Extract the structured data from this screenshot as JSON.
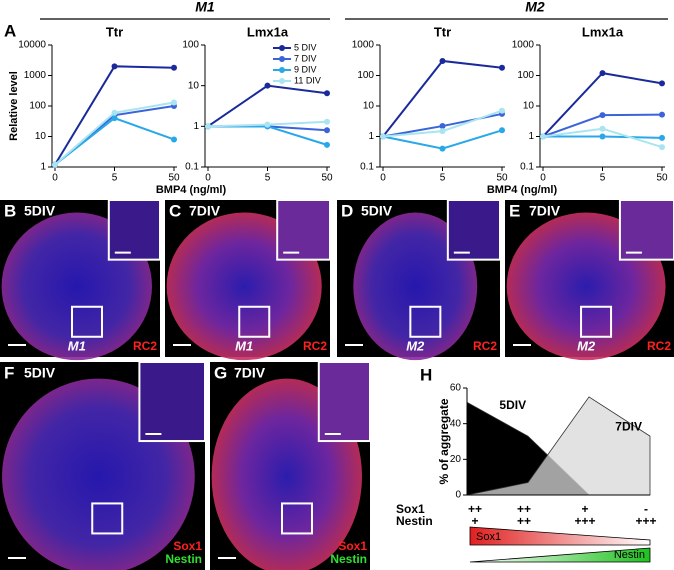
{
  "panels": {
    "panel_a": {
      "label": "A",
      "groups": [
        {
          "title": "M1"
        },
        {
          "title": "M2"
        }
      ]
    },
    "images": [
      {
        "label": "B",
        "div": "5DIV",
        "model": "M1",
        "markers": [
          {
            "text": "RC2",
            "color": "#ff2020"
          }
        ]
      },
      {
        "label": "C",
        "div": "7DIV",
        "model": "M1",
        "markers": [
          {
            "text": "RC2",
            "color": "#ff2020"
          }
        ]
      },
      {
        "label": "D",
        "div": "5DIV",
        "model": "M2",
        "markers": [
          {
            "text": "RC2",
            "color": "#ff2020"
          }
        ]
      },
      {
        "label": "E",
        "div": "7DIV",
        "model": "M2",
        "markers": [
          {
            "text": "RC2",
            "color": "#ff2020"
          }
        ]
      },
      {
        "label": "F",
        "div": "5DIV",
        "markers": [
          {
            "text": "Sox1",
            "color": "#ff2020"
          },
          {
            "text": "Nestin",
            "color": "#30e030"
          }
        ]
      },
      {
        "label": "G",
        "div": "7DIV",
        "markers": [
          {
            "text": "Sox1",
            "color": "#ff2020"
          },
          {
            "text": "Nestin",
            "color": "#30e030"
          }
        ]
      }
    ],
    "panel_h": {
      "label": "H",
      "markers": [
        {
          "name": "Sox1",
          "color": "#e02020",
          "levels": [
            "++",
            "++",
            "+",
            "-"
          ]
        },
        {
          "name": "Nestin",
          "color": "#20c820",
          "levels": [
            "+",
            "++",
            "+++",
            "+++"
          ]
        }
      ]
    }
  },
  "chart_data": [
    {
      "type": "line",
      "title": "Ttr",
      "ylabel": "Relative level",
      "xlabel": "BMP4 (ng/ml)",
      "categories": [
        "0",
        "5",
        "50"
      ],
      "log_y": true,
      "ylim": [
        1,
        10000
      ],
      "yticks": [
        1,
        10,
        100,
        1000,
        10000
      ],
      "series": [
        {
          "color": "#1a2a9a",
          "values": [
            1.2,
            2000,
            1800
          ]
        },
        {
          "color": "#3a64d8",
          "values": [
            1.2,
            50,
            100
          ]
        },
        {
          "color": "#28a8e8",
          "values": [
            1.2,
            40,
            8
          ]
        },
        {
          "color": "#a8e4f2",
          "values": [
            1.2,
            60,
            130
          ]
        }
      ]
    },
    {
      "type": "line",
      "title": "Lmx1a",
      "categories": [
        "0",
        "5",
        "50"
      ],
      "log_y": true,
      "ylim": [
        0.1,
        100
      ],
      "yticks": [
        0.1,
        1,
        10,
        100
      ],
      "series": [
        {
          "name": "5 DIV",
          "color": "#1a2a9a",
          "values": [
            1,
            10,
            6.5
          ]
        },
        {
          "name": "7 DIV",
          "color": "#3a64d8",
          "values": [
            1,
            1,
            0.8
          ]
        },
        {
          "name": "9 DIV",
          "color": "#28a8e8",
          "values": [
            1,
            1,
            0.35
          ]
        },
        {
          "name": "11 DIV",
          "color": "#a8e4f2",
          "values": [
            1,
            1.1,
            1.3
          ]
        }
      ]
    },
    {
      "type": "line",
      "title": "Ttr",
      "xlabel": "BMP4 (ng/ml)",
      "categories": [
        "0",
        "5",
        "50"
      ],
      "log_y": true,
      "ylim": [
        0.1,
        1000
      ],
      "yticks": [
        0.1,
        1,
        10,
        100,
        1000
      ],
      "series": [
        {
          "color": "#1a2a9a",
          "values": [
            1,
            300,
            180
          ]
        },
        {
          "color": "#3a64d8",
          "values": [
            1,
            2.2,
            5.5
          ]
        },
        {
          "color": "#28a8e8",
          "values": [
            1,
            0.4,
            1.6
          ]
        },
        {
          "color": "#a8e4f2",
          "values": [
            1,
            1.5,
            7
          ]
        }
      ]
    },
    {
      "type": "line",
      "title": "Lmx1a",
      "categories": [
        "0",
        "5",
        "50"
      ],
      "log_y": true,
      "ylim": [
        0.1,
        1000
      ],
      "yticks": [
        0.1,
        1,
        10,
        100,
        1000
      ],
      "series": [
        {
          "color": "#1a2a9a",
          "values": [
            1,
            120,
            55
          ]
        },
        {
          "color": "#3a64d8",
          "values": [
            1,
            5,
            5.2
          ]
        },
        {
          "color": "#28a8e8",
          "values": [
            1,
            1,
            0.9
          ]
        },
        {
          "color": "#a8e4f2",
          "values": [
            1,
            1.8,
            0.45
          ]
        }
      ]
    },
    {
      "type": "area",
      "ylabel": "% of aggregate",
      "categories": [
        null,
        null,
        null,
        null
      ],
      "ylim": [
        0,
        60
      ],
      "yticks": [
        0,
        20,
        40,
        60
      ],
      "series": [
        {
          "name": "5DIV",
          "color": "#000000",
          "values": [
            52,
            33,
            0,
            null
          ]
        },
        {
          "name": "7DIV",
          "color": "#d8d8d8",
          "values": [
            0,
            7,
            55,
            33
          ]
        }
      ]
    }
  ]
}
